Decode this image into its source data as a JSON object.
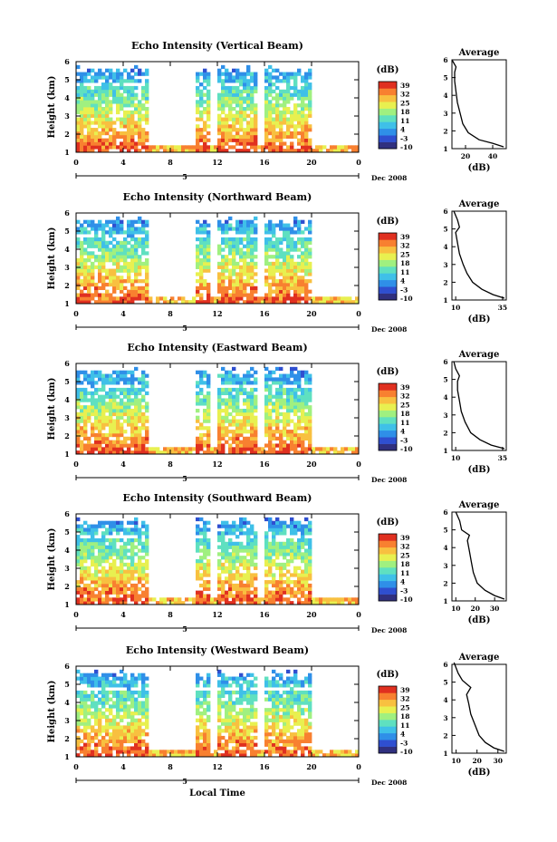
{
  "figure": {
    "shared_xlabel": "Local Time",
    "date_label": "Dec 2008",
    "day_marker": "5"
  },
  "chart_data": [
    {
      "type": "heatmap",
      "title": "Echo Intensity (Vertical Beam)",
      "ylabel": "Height (km)",
      "colorbar_unit": "(dB)",
      "colorbar_ticks": [
        "39",
        "32",
        "25",
        "18",
        "11",
        "4",
        "-3",
        "-10"
      ],
      "x_ticks": [
        "0",
        "4",
        "8",
        "12",
        "16",
        "20",
        "0"
      ],
      "y_ticks": [
        "1",
        "2",
        "3",
        "4",
        "5",
        "6"
      ],
      "avg_title": "Average",
      "avg_xlabel": "(dB)",
      "avg_xticks": [
        "20",
        "40"
      ],
      "avg_xlim": [
        10,
        50
      ],
      "avg_profile": [
        [
          48,
          1.1
        ],
        [
          40,
          1.3
        ],
        [
          30,
          1.5
        ],
        [
          22,
          1.9
        ],
        [
          18,
          2.4
        ],
        [
          16,
          3.0
        ],
        [
          14,
          3.6
        ],
        [
          13,
          4.2
        ],
        [
          12,
          4.8
        ],
        [
          12,
          5.3
        ],
        [
          13,
          5.6
        ],
        [
          10,
          6.0
        ]
      ]
    },
    {
      "type": "heatmap",
      "title": "Echo Intensity (Northward Beam)",
      "ylabel": "Height (km)",
      "colorbar_unit": "(dB)",
      "colorbar_ticks": [
        "39",
        "32",
        "25",
        "18",
        "11",
        "4",
        "-3",
        "-10"
      ],
      "x_ticks": [
        "0",
        "4",
        "8",
        "12",
        "16",
        "20",
        "0"
      ],
      "y_ticks": [
        "1",
        "2",
        "3",
        "4",
        "5",
        "6"
      ],
      "avg_title": "Average",
      "avg_xlabel": "(dB)",
      "avg_xticks": [
        "10",
        "35"
      ],
      "avg_xlim": [
        8,
        37
      ],
      "avg_profile": [
        [
          36,
          1.1
        ],
        [
          30,
          1.3
        ],
        [
          24,
          1.6
        ],
        [
          19,
          2.0
        ],
        [
          16,
          2.5
        ],
        [
          14,
          3.0
        ],
        [
          12,
          3.6
        ],
        [
          11,
          4.2
        ],
        [
          10,
          4.8
        ],
        [
          12,
          5.1
        ],
        [
          11,
          5.5
        ],
        [
          9,
          6.0
        ]
      ]
    },
    {
      "type": "heatmap",
      "title": "Echo Intensity (Eastward Beam)",
      "ylabel": "Height (km)",
      "colorbar_unit": "(dB)",
      "colorbar_ticks": [
        "39",
        "32",
        "25",
        "18",
        "11",
        "4",
        "-3",
        "-10"
      ],
      "x_ticks": [
        "0",
        "4",
        "8",
        "12",
        "16",
        "20",
        "0"
      ],
      "y_ticks": [
        "1",
        "2",
        "3",
        "4",
        "5",
        "6"
      ],
      "avg_title": "Average",
      "avg_xlabel": "(dB)",
      "avg_xticks": [
        "10",
        "35"
      ],
      "avg_xlim": [
        8,
        37
      ],
      "avg_profile": [
        [
          36,
          1.1
        ],
        [
          29,
          1.3
        ],
        [
          23,
          1.6
        ],
        [
          18,
          2.0
        ],
        [
          15,
          2.6
        ],
        [
          13,
          3.2
        ],
        [
          12,
          3.8
        ],
        [
          11,
          4.4
        ],
        [
          11,
          4.9
        ],
        [
          12,
          5.2
        ],
        [
          10,
          5.6
        ],
        [
          9,
          6.0
        ]
      ]
    },
    {
      "type": "heatmap",
      "title": "Echo Intensity (Southward Beam)",
      "ylabel": "Height (km)",
      "colorbar_unit": "(dB)",
      "colorbar_ticks": [
        "39",
        "32",
        "25",
        "18",
        "11",
        "4",
        "-3",
        "-10"
      ],
      "x_ticks": [
        "0",
        "4",
        "8",
        "12",
        "16",
        "20",
        "0"
      ],
      "y_ticks": [
        "1",
        "2",
        "3",
        "4",
        "5",
        "6"
      ],
      "avg_title": "Average",
      "avg_xlabel": "(dB)",
      "avg_xticks": [
        "10",
        "20",
        "30"
      ],
      "avg_xlim": [
        8,
        36
      ],
      "avg_profile": [
        [
          35,
          1.1
        ],
        [
          30,
          1.3
        ],
        [
          25,
          1.6
        ],
        [
          21,
          2.0
        ],
        [
          19,
          2.6
        ],
        [
          18,
          3.2
        ],
        [
          17,
          3.8
        ],
        [
          16,
          4.4
        ],
        [
          17,
          4.7
        ],
        [
          13,
          5.0
        ],
        [
          12,
          5.5
        ],
        [
          10,
          6.0
        ]
      ]
    },
    {
      "type": "heatmap",
      "title": "Echo Intensity (Westward Beam)",
      "ylabel": "Height (km)",
      "colorbar_unit": "(dB)",
      "colorbar_ticks": [
        "39",
        "32",
        "25",
        "18",
        "11",
        "4",
        "-3",
        "-10"
      ],
      "x_ticks": [
        "0",
        "4",
        "8",
        "12",
        "16",
        "20",
        "0"
      ],
      "y_ticks": [
        "1",
        "2",
        "3",
        "4",
        "5",
        "6"
      ],
      "avg_title": "Average",
      "avg_xlabel": "(dB)",
      "avg_xticks": [
        "10",
        "20",
        "30"
      ],
      "avg_xlim": [
        8,
        34
      ],
      "avg_profile": [
        [
          33,
          1.1
        ],
        [
          28,
          1.3
        ],
        [
          24,
          1.6
        ],
        [
          21,
          2.0
        ],
        [
          19,
          2.6
        ],
        [
          17,
          3.2
        ],
        [
          16,
          3.8
        ],
        [
          15,
          4.3
        ],
        [
          17,
          4.7
        ],
        [
          13,
          5.1
        ],
        [
          11,
          5.5
        ],
        [
          9,
          6.1
        ]
      ]
    }
  ],
  "colorscale": [
    "#30307f",
    "#2f4fd0",
    "#2f8fe8",
    "#3fc0e8",
    "#5fe0c0",
    "#a0f080",
    "#e8f050",
    "#f8c040",
    "#f88030",
    "#e03020"
  ]
}
